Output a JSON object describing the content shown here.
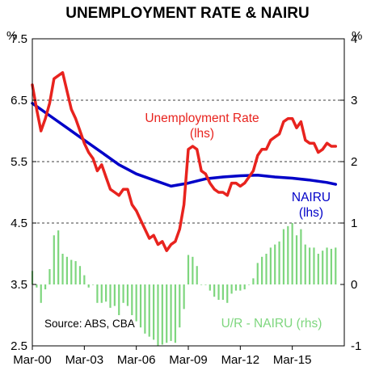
{
  "chart_data": {
    "type": "line",
    "title": "UNEMPLOYMENT RATE & NAIRU",
    "left_unit": "%",
    "right_unit": "%",
    "x_tick_labels": [
      "Mar-00",
      "Mar-03",
      "Mar-06",
      "Mar-09",
      "Mar-12",
      "Mar-15"
    ],
    "x_range": [
      "2000-03",
      "2018-03"
    ],
    "left_ticks": [
      "7.5",
      "6.5",
      "5.5",
      "4.5",
      "3.5",
      "2.5"
    ],
    "right_ticks": [
      "4",
      "3",
      "2",
      "1",
      "0",
      "-1"
    ],
    "ylim_left": [
      2.5,
      7.5
    ],
    "ylim_right": [
      -1,
      4
    ],
    "gridlines": "horizontal dashed at 6.5, 5.5 and 4.5",
    "annotations": {
      "unemployment": [
        "Unemployment Rate",
        "(lhs)"
      ],
      "nairu": [
        "NAIRU",
        "(lhs)"
      ],
      "gap": "U/R - NAIRU (rhs)",
      "source": "Source: ABS, CBA"
    },
    "colors": {
      "unemployment": "#e8231e",
      "nairu": "#0000c8",
      "gap": "#7ed67e"
    },
    "series": [
      {
        "name": "Unemployment Rate (lhs)",
        "axis": "left",
        "x": [
          "2000-03",
          "2000-06",
          "2000-09",
          "2000-12",
          "2001-03",
          "2001-06",
          "2001-09",
          "2001-12",
          "2002-03",
          "2002-06",
          "2002-09",
          "2002-12",
          "2003-03",
          "2003-06",
          "2003-09",
          "2003-12",
          "2004-03",
          "2004-06",
          "2004-09",
          "2004-12",
          "2005-03",
          "2005-06",
          "2005-09",
          "2005-12",
          "2006-03",
          "2006-06",
          "2006-09",
          "2006-12",
          "2007-03",
          "2007-06",
          "2007-09",
          "2007-12",
          "2008-03",
          "2008-06",
          "2008-09",
          "2008-12",
          "2009-03",
          "2009-06",
          "2009-09",
          "2009-12",
          "2010-03",
          "2010-06",
          "2010-09",
          "2010-12",
          "2011-03",
          "2011-06",
          "2011-09",
          "2011-12",
          "2012-03",
          "2012-06",
          "2012-09",
          "2012-12",
          "2013-03",
          "2013-06",
          "2013-09",
          "2013-12",
          "2014-03",
          "2014-06",
          "2014-09",
          "2014-12",
          "2015-03",
          "2015-06",
          "2015-09",
          "2015-12",
          "2016-03",
          "2016-06",
          "2016-09",
          "2016-12",
          "2017-03",
          "2017-06",
          "2017-09"
        ],
        "values": [
          6.75,
          6.35,
          6.0,
          6.2,
          6.45,
          6.85,
          6.9,
          6.95,
          6.65,
          6.35,
          6.2,
          6.0,
          5.8,
          5.65,
          5.55,
          5.35,
          5.45,
          5.25,
          5.05,
          5.0,
          4.95,
          5.05,
          5.05,
          4.8,
          4.7,
          4.55,
          4.4,
          4.25,
          4.3,
          4.15,
          4.2,
          4.05,
          4.15,
          4.2,
          4.4,
          4.8,
          5.7,
          5.75,
          5.7,
          5.35,
          5.3,
          5.15,
          5.05,
          5.0,
          5.0,
          4.95,
          5.15,
          5.15,
          5.1,
          5.15,
          5.25,
          5.35,
          5.6,
          5.7,
          5.7,
          5.85,
          5.9,
          5.95,
          6.15,
          6.2,
          6.2,
          6.05,
          6.15,
          5.85,
          5.8,
          5.8,
          5.65,
          5.7,
          5.8,
          5.75,
          5.75
        ]
      },
      {
        "name": "NAIRU (lhs)",
        "axis": "left",
        "x": [
          "2000-03",
          "2001-03",
          "2002-03",
          "2003-03",
          "2004-03",
          "2005-03",
          "2006-03",
          "2007-03",
          "2008-03",
          "2009-03",
          "2010-03",
          "2011-03",
          "2012-03",
          "2013-03",
          "2014-03",
          "2015-03",
          "2016-03",
          "2017-03",
          "2017-09"
        ],
        "values": [
          6.45,
          6.25,
          6.05,
          5.85,
          5.65,
          5.45,
          5.3,
          5.2,
          5.1,
          5.15,
          5.22,
          5.25,
          5.27,
          5.28,
          5.25,
          5.23,
          5.2,
          5.16,
          5.13
        ]
      },
      {
        "name": "U/R - NAIRU (rhs)",
        "axis": "right",
        "kind": "bar",
        "x": [
          "2000-03",
          "2000-06",
          "2000-09",
          "2000-12",
          "2001-03",
          "2001-06",
          "2001-09",
          "2001-12",
          "2002-03",
          "2002-06",
          "2002-09",
          "2002-12",
          "2003-03",
          "2003-06",
          "2003-09",
          "2003-12",
          "2004-03",
          "2004-06",
          "2004-09",
          "2004-12",
          "2005-03",
          "2005-06",
          "2005-09",
          "2005-12",
          "2006-03",
          "2006-06",
          "2006-09",
          "2006-12",
          "2007-03",
          "2007-06",
          "2007-09",
          "2007-12",
          "2008-03",
          "2008-06",
          "2008-09",
          "2008-12",
          "2009-03",
          "2009-06",
          "2009-09",
          "2009-12",
          "2010-03",
          "2010-06",
          "2010-09",
          "2010-12",
          "2011-03",
          "2011-06",
          "2011-09",
          "2011-12",
          "2012-03",
          "2012-06",
          "2012-09",
          "2012-12",
          "2013-03",
          "2013-06",
          "2013-09",
          "2013-12",
          "2014-03",
          "2014-06",
          "2014-09",
          "2014-12",
          "2015-03",
          "2015-06",
          "2015-09",
          "2015-12",
          "2016-03",
          "2016-06",
          "2016-09",
          "2016-12",
          "2017-03",
          "2017-06",
          "2017-09"
        ],
        "values": [
          0.22,
          -0.05,
          -0.3,
          -0.08,
          0.25,
          0.8,
          0.88,
          0.5,
          0.45,
          0.4,
          0.38,
          0.3,
          0.15,
          -0.05,
          0.0,
          -0.3,
          -0.3,
          -0.28,
          -0.38,
          -0.35,
          -0.5,
          -0.3,
          -0.35,
          -0.5,
          -0.6,
          -0.7,
          -0.8,
          -0.85,
          -0.9,
          -1.0,
          -0.98,
          -0.95,
          -0.92,
          -0.95,
          -0.7,
          -0.4,
          0.48,
          0.45,
          0.3,
          0.0,
          0.0,
          -0.1,
          -0.2,
          -0.25,
          -0.25,
          -0.3,
          -0.15,
          -0.1,
          -0.1,
          -0.08,
          0.0,
          0.1,
          0.35,
          0.45,
          0.5,
          0.6,
          0.65,
          0.7,
          0.9,
          0.95,
          1.0,
          0.8,
          0.9,
          0.65,
          0.6,
          0.6,
          0.5,
          0.55,
          0.6,
          0.58,
          0.6
        ]
      }
    ]
  }
}
